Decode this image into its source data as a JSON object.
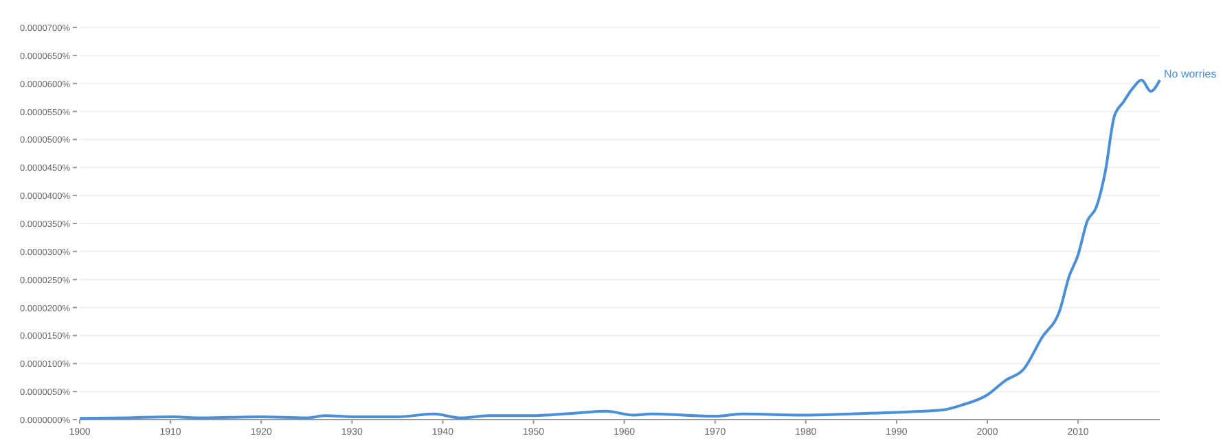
{
  "chart_data": {
    "type": "line",
    "x": [
      1900,
      1905,
      1910,
      1913,
      1920,
      1925,
      1927,
      1930,
      1935,
      1939,
      1942,
      1945,
      1950,
      1955,
      1958,
      1961,
      1963,
      1970,
      1973,
      1980,
      1985,
      1990,
      1995,
      1997,
      2000,
      2002,
      2004,
      2006,
      2008,
      2009,
      2010,
      2011,
      2012,
      2013,
      2014,
      2015,
      2016,
      2017,
      2018,
      2019
    ],
    "series": [
      {
        "name": "No worries",
        "color": "#4a90d9",
        "values": [
          2e-07,
          3e-07,
          5e-07,
          3e-07,
          5e-07,
          3e-07,
          7e-07,
          5e-07,
          5e-07,
          1e-06,
          3e-07,
          7e-07,
          7e-07,
          1.2e-06,
          1.5e-06,
          8e-07,
          1e-06,
          6e-07,
          1e-06,
          8e-07,
          1e-06,
          1.3e-06,
          1.7e-06,
          2.5e-06,
          4.4e-06,
          7e-06,
          9e-06,
          1.46e-05,
          1.96e-05,
          2.55e-05,
          2.94e-05,
          3.54e-05,
          3.79e-05,
          4.43e-05,
          5.42e-05,
          5.67e-05,
          5.91e-05,
          6.06e-05,
          5.86e-05,
          6.06e-05
        ]
      }
    ],
    "xlim": [
      1900,
      2019
    ],
    "xticks": [
      1900,
      1910,
      1920,
      1930,
      1940,
      1950,
      1960,
      1970,
      1980,
      1990,
      2000,
      2010
    ],
    "ylim": [
      0,
      7e-05
    ],
    "yticks": [
      {
        "value": 0,
        "label": "0.0000000%"
      },
      {
        "value": 5e-06,
        "label": "0.0000050%"
      },
      {
        "value": 1e-05,
        "label": "0.0000100%"
      },
      {
        "value": 1.5e-05,
        "label": "0.0000150%"
      },
      {
        "value": 2e-05,
        "label": "0.0000200%"
      },
      {
        "value": 2.5e-05,
        "label": "0.0000250%"
      },
      {
        "value": 3e-05,
        "label": "0.0000300%"
      },
      {
        "value": 3.5e-05,
        "label": "0.0000350%"
      },
      {
        "value": 4e-05,
        "label": "0.0000400%"
      },
      {
        "value": 4.5e-05,
        "label": "0.0000450%"
      },
      {
        "value": 5e-05,
        "label": "0.0000500%"
      },
      {
        "value": 5.5e-05,
        "label": "0.0000550%"
      },
      {
        "value": 6e-05,
        "label": "0.0000600%"
      },
      {
        "value": 6.5e-05,
        "label": "0.0000650%"
      },
      {
        "value": 7e-05,
        "label": "0.0000700%"
      }
    ],
    "grid": "y",
    "marker": "none",
    "line_style": "solid"
  }
}
